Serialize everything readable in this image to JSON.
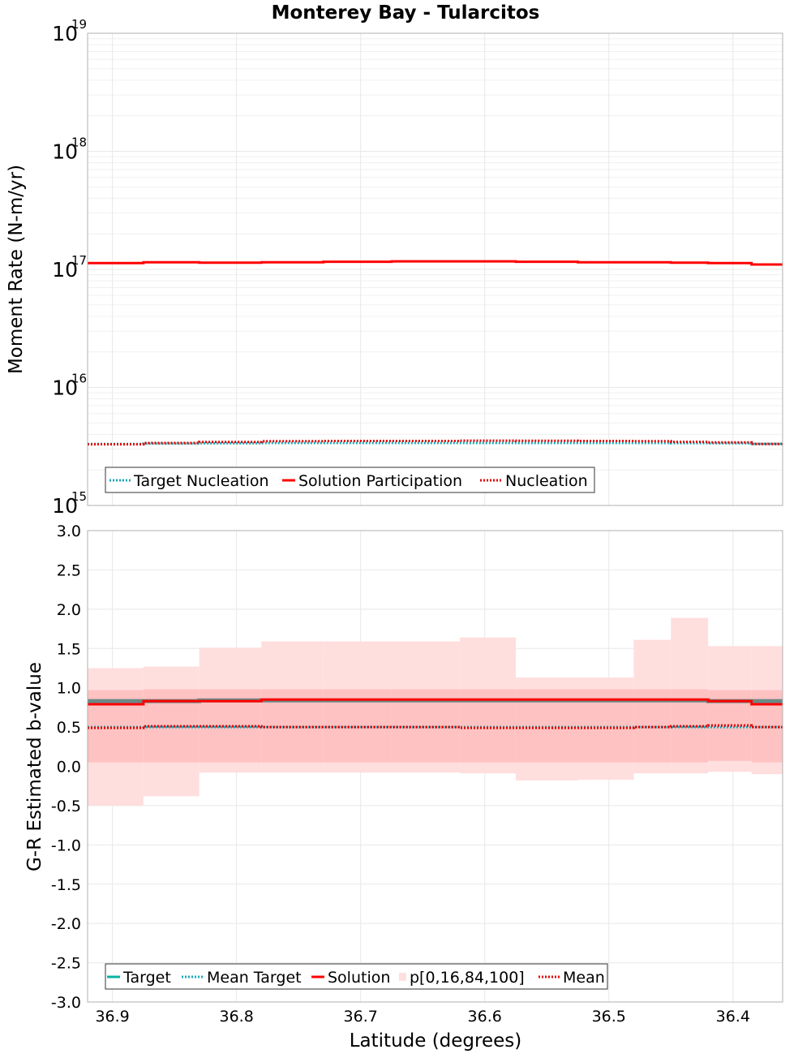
{
  "title": "Monterey Bay - Tularcitos",
  "xlabel": "Latitude (degrees)",
  "colors": {
    "solution": "#ff0000",
    "mean": "#e00000",
    "target": "#00b3a6",
    "target_nucleation": "#1aa9b8",
    "band_outer": "#ffdede",
    "band_inner": "#ffc2c2",
    "legend_swatch_band": "#ffe0e0",
    "grid": "#e8e8e8",
    "frame": "#b0b0b0"
  },
  "chart_data": [
    {
      "type": "line",
      "name": "moment-rate",
      "ylabel": "Moment Rate (N-m/yr)",
      "yscale": "log",
      "ylim": [
        1000000000000000.0,
        1e+19
      ],
      "xlim": [
        36.92,
        36.36
      ],
      "y_ticks": [
        {
          "value": 1e+19,
          "base": "10",
          "exp": "19"
        },
        {
          "value": 1e+18,
          "base": "10",
          "exp": "18"
        },
        {
          "value": 1e+17,
          "base": "10",
          "exp": "17"
        },
        {
          "value": 1e+16,
          "base": "10",
          "exp": "16"
        },
        {
          "value": 1000000000000000.0,
          "base": "10",
          "exp": "15"
        }
      ],
      "bin_edges": [
        36.92,
        36.875,
        36.83,
        36.78,
        36.73,
        36.675,
        36.62,
        36.575,
        36.525,
        36.48,
        36.45,
        36.42,
        36.385,
        36.36
      ],
      "series": [
        {
          "name": "Solution Participation",
          "style": "solid",
          "values": [
            1.13e+17,
            1.15e+17,
            1.14e+17,
            1.15e+17,
            1.16e+17,
            1.17e+17,
            1.17e+17,
            1.16e+17,
            1.15e+17,
            1.15e+17,
            1.14e+17,
            1.13e+17,
            1.1e+17
          ]
        },
        {
          "name": "Nucleation",
          "style": "dotted",
          "values": [
            3300000000000000.0,
            3380000000000000.0,
            3450000000000000.0,
            3500000000000000.0,
            3520000000000000.0,
            3520000000000000.0,
            3540000000000000.0,
            3530000000000000.0,
            3520000000000000.0,
            3500000000000000.0,
            3460000000000000.0,
            3420000000000000.0,
            3320000000000000.0
          ]
        },
        {
          "name": "Target Nucleation",
          "style": "dotted",
          "values": [
            3320000000000000.0,
            3340000000000000.0,
            3360000000000000.0,
            3380000000000000.0,
            3380000000000000.0,
            3380000000000000.0,
            3380000000000000.0,
            3380000000000000.0,
            3380000000000000.0,
            3380000000000000.0,
            3370000000000000.0,
            3360000000000000.0,
            3330000000000000.0
          ]
        }
      ],
      "legend": [
        "Target Nucleation",
        "Solution Participation",
        "Nucleation"
      ]
    },
    {
      "type": "line",
      "name": "b-value",
      "ylabel": "G-R Estimated b-value",
      "ylim": [
        -3.0,
        3.0
      ],
      "xlim": [
        36.92,
        36.36
      ],
      "y_tick_labels": [
        "3.0",
        "2.5",
        "2.0",
        "1.5",
        "1.0",
        "0.5",
        "0.0",
        "-0.5",
        "-1.0",
        "-1.5",
        "-2.0",
        "-2.5",
        "-3.0"
      ],
      "x_ticks": [
        36.9,
        36.8,
        36.7,
        36.6,
        36.5,
        36.4
      ],
      "x_tick_labels": [
        "36.9",
        "36.8",
        "36.7",
        "36.6",
        "36.5",
        "36.4"
      ],
      "bin_edges": [
        36.92,
        36.875,
        36.83,
        36.78,
        36.73,
        36.675,
        36.62,
        36.575,
        36.525,
        36.48,
        36.45,
        36.42,
        36.385,
        36.36
      ],
      "band_p0": [
        -0.5,
        -0.38,
        -0.08,
        -0.08,
        -0.08,
        -0.08,
        -0.09,
        -0.18,
        -0.17,
        -0.09,
        -0.09,
        -0.07,
        -0.1
      ],
      "band_p16": [
        0.05,
        0.05,
        0.05,
        0.05,
        0.05,
        0.05,
        0.05,
        0.05,
        0.05,
        0.05,
        0.05,
        0.07,
        0.05
      ],
      "band_p84": [
        0.97,
        0.98,
        0.98,
        0.98,
        0.98,
        0.98,
        0.98,
        0.98,
        0.98,
        0.98,
        0.98,
        0.97,
        0.97
      ],
      "band_p100": [
        1.25,
        1.27,
        1.51,
        1.59,
        1.59,
        1.59,
        1.64,
        1.13,
        1.13,
        1.61,
        1.89,
        1.53,
        1.53
      ],
      "series": [
        {
          "name": "Target",
          "style": "solid",
          "values": [
            0.83,
            0.83,
            0.84,
            0.84,
            0.84,
            0.84,
            0.84,
            0.84,
            0.84,
            0.84,
            0.84,
            0.83,
            0.83
          ]
        },
        {
          "name": "Mean Target",
          "style": "dotted",
          "values": [
            0.5,
            0.5,
            0.5,
            0.5,
            0.5,
            0.5,
            0.5,
            0.5,
            0.5,
            0.5,
            0.5,
            0.5,
            0.5
          ]
        },
        {
          "name": "Solution",
          "style": "solid",
          "values": [
            0.79,
            0.83,
            0.83,
            0.85,
            0.85,
            0.85,
            0.85,
            0.85,
            0.85,
            0.85,
            0.85,
            0.83,
            0.79
          ]
        },
        {
          "name": "Mean",
          "style": "dotted",
          "values": [
            0.49,
            0.51,
            0.51,
            0.5,
            0.5,
            0.5,
            0.49,
            0.49,
            0.49,
            0.5,
            0.51,
            0.52,
            0.5
          ]
        }
      ],
      "legend": [
        "Target",
        "Mean Target",
        "Solution",
        "p[0,16,84,100]",
        "Mean"
      ]
    }
  ]
}
